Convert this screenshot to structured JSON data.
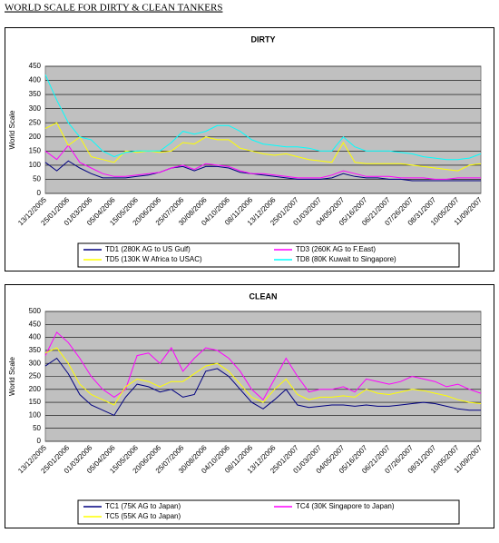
{
  "title": "WORLD SCALE FOR DIRTY & CLEAN TANKERS",
  "chart_data": [
    {
      "type": "line",
      "title": "DIRTY",
      "y_label": "World Scale",
      "categories": [
        "13/12/2005",
        null,
        "25/01/2006",
        null,
        "01/03/2006",
        null,
        "05/04/2006",
        null,
        "15/05/2006",
        null,
        "20/06/2006",
        null,
        "25/07/2006",
        null,
        "30/08/2006",
        null,
        "04/10/2006",
        null,
        "08/11/2006",
        null,
        "13/12/2006",
        null,
        "25/01/2007",
        null,
        "01/03/2007",
        null,
        "04/05/2007",
        null,
        "05/16/2007",
        null,
        "06/21/2007",
        null,
        "07/26/2007",
        null,
        "08/31/2007",
        null,
        "10/05/2007",
        null,
        "11/09/2007"
      ],
      "ylim": [
        0,
        450
      ],
      "yticks": [
        0,
        50,
        100,
        150,
        200,
        250,
        300,
        350,
        400,
        450
      ],
      "grid": true,
      "series": [
        {
          "name": "TD1 (280K AG to US Gulf)",
          "color": "#000080",
          "values": [
            110,
            80,
            115,
            90,
            70,
            55,
            55,
            55,
            60,
            65,
            75,
            90,
            95,
            80,
            95,
            95,
            90,
            75,
            70,
            65,
            60,
            55,
            50,
            50,
            50,
            55,
            70,
            60,
            55,
            55,
            50,
            50,
            45,
            45,
            45,
            45,
            45,
            45,
            45
          ]
        },
        {
          "name": "TD3 (260K AG to F.East)",
          "color": "#ff00ff",
          "values": [
            150,
            120,
            170,
            110,
            90,
            70,
            60,
            60,
            65,
            70,
            75,
            90,
            100,
            85,
            105,
            100,
            95,
            80,
            70,
            70,
            65,
            60,
            55,
            55,
            55,
            65,
            80,
            70,
            60,
            60,
            60,
            55,
            55,
            55,
            50,
            50,
            55,
            55,
            55
          ]
        },
        {
          "name": "TD5 (130K W Africa to USAC)",
          "color": "#ffff00",
          "values": [
            230,
            250,
            170,
            200,
            130,
            120,
            110,
            150,
            145,
            150,
            145,
            150,
            180,
            175,
            200,
            190,
            190,
            160,
            150,
            140,
            135,
            140,
            130,
            120,
            115,
            110,
            180,
            110,
            105,
            105,
            105,
            105,
            100,
            95,
            90,
            85,
            80,
            100,
            105
          ]
        },
        {
          "name": "TD8 (80K Kuwait to Singapore)",
          "color": "#00ffff",
          "values": [
            420,
            330,
            250,
            200,
            190,
            150,
            130,
            145,
            150,
            150,
            150,
            180,
            220,
            210,
            220,
            240,
            240,
            220,
            190,
            175,
            170,
            165,
            165,
            160,
            150,
            150,
            200,
            165,
            150,
            150,
            150,
            145,
            140,
            130,
            125,
            120,
            120,
            125,
            140
          ]
        }
      ]
    },
    {
      "type": "line",
      "title": "CLEAN",
      "y_label": "World Scale",
      "categories": [
        "13/12/2005",
        null,
        "25/01/2006",
        null,
        "01/03/2006",
        null,
        "05/04/2006",
        null,
        "15/05/2006",
        null,
        "20/06/2006",
        null,
        "25/07/2006",
        null,
        "30/08/2006",
        null,
        "04/10/2006",
        null,
        "08/11/2006",
        null,
        "13/12/2006",
        null,
        "25/01/2007",
        null,
        "01/03/2007",
        null,
        "04/05/2007",
        null,
        "05/16/2007",
        null,
        "06/21/2007",
        null,
        "07/26/2007",
        null,
        "08/31/2007",
        null,
        "10/05/2007",
        null,
        "11/09/2007"
      ],
      "ylim": [
        0,
        500
      ],
      "yticks": [
        0,
        50,
        100,
        150,
        200,
        250,
        300,
        350,
        400,
        450,
        500
      ],
      "grid": true,
      "series": [
        {
          "name": "TC1 (75K AG to Japan)",
          "color": "#000080",
          "values": [
            290,
            320,
            260,
            180,
            140,
            120,
            100,
            170,
            220,
            210,
            190,
            200,
            170,
            180,
            270,
            280,
            250,
            200,
            150,
            125,
            160,
            200,
            140,
            130,
            135,
            140,
            140,
            135,
            140,
            135,
            135,
            140,
            145,
            150,
            145,
            135,
            125,
            120,
            120
          ]
        },
        {
          "name": "TC4 (30K Singapore to Japan)",
          "color": "#ff00ff",
          "values": [
            330,
            420,
            380,
            320,
            250,
            200,
            170,
            200,
            330,
            340,
            300,
            360,
            270,
            320,
            360,
            350,
            320,
            270,
            200,
            160,
            240,
            320,
            250,
            190,
            200,
            200,
            210,
            190,
            240,
            230,
            220,
            230,
            250,
            240,
            230,
            210,
            220,
            200,
            185
          ]
        },
        {
          "name": "TC5 (55K AG to Japan)",
          "color": "#ffff00",
          "values": [
            340,
            360,
            300,
            220,
            180,
            160,
            140,
            210,
            240,
            230,
            210,
            230,
            230,
            260,
            290,
            300,
            270,
            220,
            170,
            150,
            200,
            240,
            180,
            160,
            170,
            170,
            175,
            170,
            200,
            185,
            180,
            190,
            200,
            195,
            185,
            175,
            160,
            150,
            145
          ]
        }
      ]
    }
  ]
}
